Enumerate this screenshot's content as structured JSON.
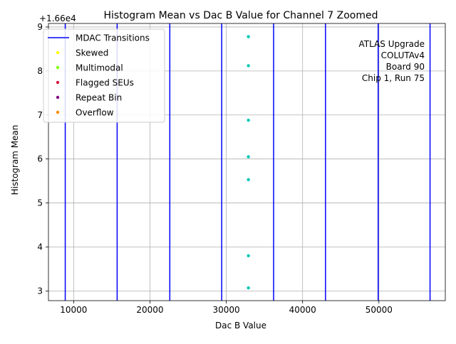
{
  "chart_data": {
    "type": "scatter",
    "title": "Histogram Mean vs Dac B Value for Channel 7 Zoomed",
    "xlabel": "Dac B Value",
    "ylabel": "Histogram Mean",
    "offset_label": "+1.66e4",
    "xlim": [
      6700,
      58700
    ],
    "ylim": [
      2.78,
      9.08
    ],
    "x_ticks": [
      10000,
      20000,
      30000,
      40000,
      50000
    ],
    "x_tick_labels": [
      "10000",
      "20000",
      "30000",
      "40000",
      "50000"
    ],
    "y_ticks": [
      3,
      4,
      5,
      6,
      7,
      8,
      9
    ],
    "y_tick_labels": [
      "3",
      "4",
      "5",
      "6",
      "7",
      "8",
      "9"
    ],
    "grid": true,
    "legend_position": "top-left",
    "legend": [
      {
        "label": "MDAC Transitions",
        "kind": "line",
        "color": "#0000ff"
      },
      {
        "label": "Skewed",
        "kind": "marker",
        "color": "#ffff00"
      },
      {
        "label": "Multimodal",
        "kind": "marker",
        "color": "#7fff00"
      },
      {
        "label": "Flagged SEUs",
        "kind": "marker",
        "color": "#dc143c"
      },
      {
        "label": "Repeat Bin",
        "kind": "marker",
        "color": "#800080"
      },
      {
        "label": "Overflow",
        "kind": "marker",
        "color": "#ff8c00"
      }
    ],
    "mdac_transitions": [
      8900,
      15700,
      22600,
      29400,
      36200,
      43000,
      49900,
      56700
    ],
    "mdac_color": "#0000ff",
    "series": [
      {
        "color": "#00c8b4",
        "points": [
          {
            "x": 32900,
            "y": 8.78
          },
          {
            "x": 32900,
            "y": 8.12
          },
          {
            "x": 32900,
            "y": 6.88
          },
          {
            "x": 32900,
            "y": 6.05
          },
          {
            "x": 32900,
            "y": 5.53
          },
          {
            "x": 32900,
            "y": 3.8
          },
          {
            "x": 32900,
            "y": 3.07
          }
        ]
      }
    ],
    "annotation": [
      "ATLAS Upgrade",
      "COLUTAv4",
      "Board 90",
      "Chip 1, Run 75"
    ]
  }
}
